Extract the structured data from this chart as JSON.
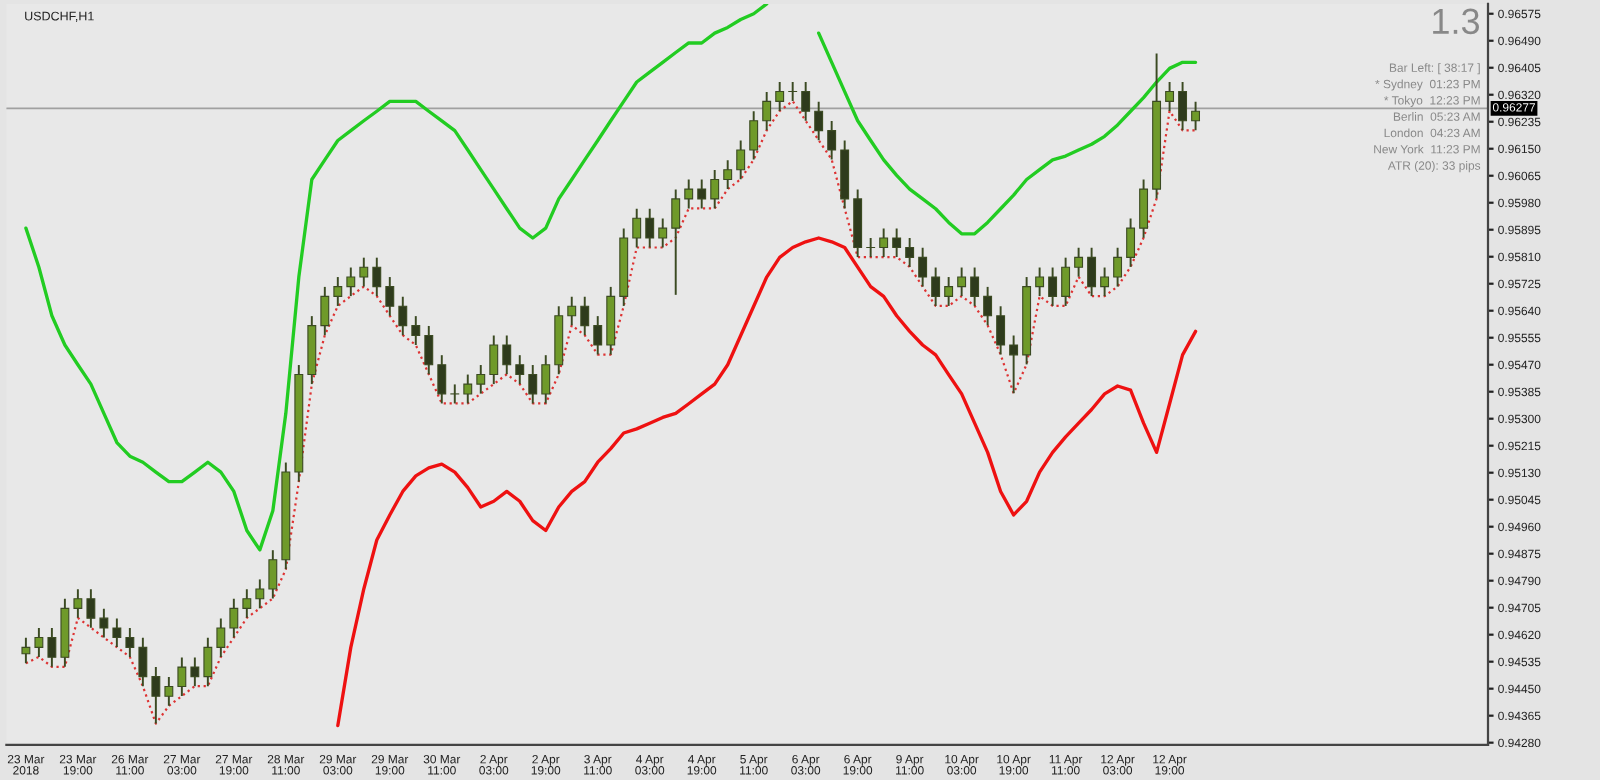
{
  "chart_data": {
    "type": "candlestick",
    "title": "USDCHF,H1",
    "categories": [
      "23 Mar 2018",
      null,
      null,
      null,
      "23 Mar 19:00",
      null,
      null,
      null,
      "26 Mar 11:00",
      null,
      null,
      null,
      "27 Mar 03:00",
      null,
      null,
      null,
      "27 Mar 19:00",
      null,
      null,
      null,
      "28 Mar 11:00",
      null,
      null,
      null,
      "29 Mar 03:00",
      null,
      null,
      null,
      "29 Mar 19:00",
      null,
      null,
      null,
      "30 Mar 11:00",
      null,
      null,
      null,
      "2 Apr 03:00",
      null,
      null,
      null,
      "2 Apr 19:00",
      null,
      null,
      null,
      "3 Apr 11:00",
      null,
      null,
      null,
      "4 Apr 03:00",
      null,
      null,
      null,
      "4 Apr 19:00",
      null,
      null,
      null,
      "5 Apr 11:00",
      null,
      null,
      null,
      "6 Apr 03:00",
      null,
      null,
      null,
      "6 Apr 19:00",
      null,
      null,
      null,
      "9 Apr 11:00",
      null,
      null,
      null,
      "10 Apr 03:00",
      null,
      null,
      null,
      "10 Apr 19:00",
      null,
      null,
      null,
      "11 Apr 11:00",
      null,
      null,
      null,
      "12 Apr 03:00",
      null,
      null,
      null,
      "12 Apr 19:00",
      null,
      null,
      null,
      null,
      null,
      null,
      null,
      null,
      null,
      null,
      null,
      null,
      null,
      null,
      null,
      null,
      null,
      null,
      null,
      null,
      null,
      null,
      null,
      null
    ],
    "ohlc": [
      [
        0.9456,
        0.9461,
        0.9453,
        0.9458
      ],
      [
        0.9458,
        0.94641,
        0.9455,
        0.94611
      ],
      [
        0.94611,
        0.94641,
        0.94519,
        0.94549
      ],
      [
        0.94549,
        0.94733,
        0.94519,
        0.94703
      ],
      [
        0.94703,
        0.94763,
        0.94673,
        0.94733
      ],
      [
        0.94733,
        0.94763,
        0.94642,
        0.94672
      ],
      [
        0.94672,
        0.94702,
        0.94611,
        0.94641
      ],
      [
        0.94641,
        0.94671,
        0.94581,
        0.94611
      ],
      [
        0.94611,
        0.94641,
        0.9455,
        0.9458
      ],
      [
        0.9458,
        0.9461,
        0.94458,
        0.94488
      ],
      [
        0.94488,
        0.94518,
        0.9434,
        0.94426
      ],
      [
        0.94426,
        0.94487,
        0.94396,
        0.94457
      ],
      [
        0.94457,
        0.94548,
        0.94427,
        0.94518
      ],
      [
        0.94518,
        0.94548,
        0.94458,
        0.94488
      ],
      [
        0.94488,
        0.9461,
        0.94458,
        0.9458
      ],
      [
        0.9458,
        0.94671,
        0.9455,
        0.94641
      ],
      [
        0.94641,
        0.94733,
        0.94611,
        0.94703
      ],
      [
        0.94703,
        0.94763,
        0.94673,
        0.94733
      ],
      [
        0.94733,
        0.94794,
        0.94703,
        0.94764
      ],
      [
        0.94764,
        0.94886,
        0.94734,
        0.94856
      ],
      [
        0.94856,
        0.95162,
        0.94826,
        0.95132
      ],
      [
        0.95132,
        0.95469,
        0.95102,
        0.95439
      ],
      [
        0.95439,
        0.95623,
        0.95409,
        0.95593
      ],
      [
        0.95593,
        0.95715,
        0.95563,
        0.95685
      ],
      [
        0.95685,
        0.95746,
        0.95655,
        0.95716
      ],
      [
        0.95716,
        0.95776,
        0.95686,
        0.95746
      ],
      [
        0.95746,
        0.95807,
        0.95716,
        0.95777
      ],
      [
        0.95777,
        0.95807,
        0.95686,
        0.95716
      ],
      [
        0.95716,
        0.95746,
        0.95624,
        0.95654
      ],
      [
        0.95654,
        0.95684,
        0.95563,
        0.95593
      ],
      [
        0.95593,
        0.95623,
        0.95532,
        0.95562
      ],
      [
        0.95562,
        0.95592,
        0.9544,
        0.9547
      ],
      [
        0.9547,
        0.955,
        0.95348,
        0.95378
      ],
      [
        0.95378,
        0.95408,
        0.95348,
        0.95378
      ],
      [
        0.95378,
        0.95439,
        0.95348,
        0.95409
      ],
      [
        0.95409,
        0.95469,
        0.95379,
        0.95439
      ],
      [
        0.95439,
        0.95562,
        0.95409,
        0.95532
      ],
      [
        0.95532,
        0.95562,
        0.9544,
        0.9547
      ],
      [
        0.9547,
        0.955,
        0.95409,
        0.95439
      ],
      [
        0.95439,
        0.95469,
        0.95348,
        0.95378
      ],
      [
        0.95378,
        0.955,
        0.95348,
        0.9547
      ],
      [
        0.9547,
        0.95654,
        0.9544,
        0.95624
      ],
      [
        0.95624,
        0.95684,
        0.95594,
        0.95654
      ],
      [
        0.95654,
        0.95684,
        0.95563,
        0.95593
      ],
      [
        0.95593,
        0.95623,
        0.95502,
        0.95532
      ],
      [
        0.95532,
        0.95715,
        0.95502,
        0.95685
      ],
      [
        0.95685,
        0.95899,
        0.95655,
        0.95869
      ],
      [
        0.95869,
        0.95961,
        0.95839,
        0.95931
      ],
      [
        0.95931,
        0.95961,
        0.95839,
        0.95869
      ],
      [
        0.95869,
        0.9593,
        0.95839,
        0.959
      ],
      [
        0.959,
        0.96022,
        0.9569,
        0.95992
      ],
      [
        0.95992,
        0.96053,
        0.95962,
        0.96023
      ],
      [
        0.96023,
        0.96053,
        0.95962,
        0.95992
      ],
      [
        0.95992,
        0.96083,
        0.95962,
        0.96053
      ],
      [
        0.96053,
        0.96114,
        0.96023,
        0.96084
      ],
      [
        0.96084,
        0.96176,
        0.96054,
        0.96146
      ],
      [
        0.96146,
        0.96268,
        0.96116,
        0.96238
      ],
      [
        0.96238,
        0.96329,
        0.96208,
        0.96299
      ],
      [
        0.96299,
        0.9636,
        0.96269,
        0.9633
      ],
      [
        0.9633,
        0.9636,
        0.963,
        0.9633
      ],
      [
        0.9633,
        0.9636,
        0.96238,
        0.96268
      ],
      [
        0.96268,
        0.96298,
        0.96177,
        0.96207
      ],
      [
        0.96207,
        0.96237,
        0.96116,
        0.96146
      ],
      [
        0.96146,
        0.96176,
        0.95962,
        0.95992
      ],
      [
        0.95992,
        0.96022,
        0.95809,
        0.95839
      ],
      [
        0.95839,
        0.95869,
        0.95809,
        0.95839
      ],
      [
        0.95839,
        0.95899,
        0.95809,
        0.95869
      ],
      [
        0.95869,
        0.95899,
        0.95809,
        0.95839
      ],
      [
        0.95839,
        0.95869,
        0.95778,
        0.95808
      ],
      [
        0.95808,
        0.95838,
        0.95716,
        0.95746
      ],
      [
        0.95746,
        0.95776,
        0.95655,
        0.95685
      ],
      [
        0.95685,
        0.95746,
        0.95655,
        0.95716
      ],
      [
        0.95716,
        0.95776,
        0.95686,
        0.95746
      ],
      [
        0.95746,
        0.95776,
        0.95655,
        0.95685
      ],
      [
        0.95685,
        0.95715,
        0.95594,
        0.95624
      ],
      [
        0.95624,
        0.95654,
        0.95502,
        0.95532
      ],
      [
        0.95532,
        0.95562,
        0.9538,
        0.95501
      ],
      [
        0.95501,
        0.95746,
        0.95471,
        0.95716
      ],
      [
        0.95716,
        0.95776,
        0.95686,
        0.95746
      ],
      [
        0.95746,
        0.95776,
        0.95655,
        0.95685
      ],
      [
        0.95685,
        0.95807,
        0.95655,
        0.95777
      ],
      [
        0.95777,
        0.95838,
        0.95747,
        0.95808
      ],
      [
        0.95808,
        0.95838,
        0.95686,
        0.95716
      ],
      [
        0.95716,
        0.95776,
        0.95686,
        0.95746
      ],
      [
        0.95746,
        0.95838,
        0.95716,
        0.95808
      ],
      [
        0.95808,
        0.9593,
        0.95778,
        0.959
      ],
      [
        0.959,
        0.96053,
        0.9587,
        0.96023
      ],
      [
        0.96023,
        0.9645,
        0.95993,
        0.96299
      ],
      [
        0.96299,
        0.9636,
        0.96269,
        0.9633
      ],
      [
        0.9633,
        0.9636,
        0.96208,
        0.96238
      ],
      [
        0.96238,
        0.96298,
        0.96208,
        0.96268
      ],
      null,
      null,
      null,
      null,
      null,
      null,
      null,
      null,
      null,
      null,
      null,
      null,
      null,
      null,
      null,
      null,
      null,
      null,
      null,
      null,
      null,
      null
    ],
    "series": [
      {
        "type": "line",
        "color": "#22cc22",
        "line_style": "solid",
        "values": [
          0.959,
          0.95777,
          0.95624,
          0.95532,
          0.9547,
          0.95409,
          0.95317,
          0.95225,
          0.95182,
          0.95163,
          0.95132,
          0.95102,
          0.95102,
          0.95132,
          0.95163,
          0.95132,
          0.95071,
          0.94948,
          0.94887,
          0.9501,
          0.95317,
          0.95746,
          0.96053,
          0.96115,
          0.96176,
          0.96207,
          0.96238,
          0.96268,
          0.96299,
          0.96299,
          0.96299,
          0.96268,
          0.96238,
          0.96207,
          0.96146,
          0.96084,
          0.96023,
          0.95961,
          0.959,
          0.95869,
          0.959,
          0.95992,
          0.96053,
          0.96115,
          0.96176,
          0.96238,
          0.96299,
          0.9636,
          0.96391,
          0.96422,
          0.96453,
          0.96483,
          0.96483,
          0.96514,
          0.96532,
          0.96557,
          0.96575,
          0.96606,
          null,
          null,
          null,
          0.96514,
          0.96422,
          0.9633,
          0.96238,
          0.96176,
          0.96115,
          0.96066,
          0.96023,
          0.95992,
          0.95961,
          0.95918,
          0.95882,
          0.95882,
          0.95918,
          0.95961,
          0.96004,
          0.96053,
          0.96084,
          0.96115,
          0.96127,
          0.96146,
          0.96164,
          0.96189,
          0.96225,
          0.96268,
          0.96311,
          0.9636,
          0.96403,
          0.96422,
          0.96422,
          null,
          null,
          null,
          null,
          null,
          null,
          null,
          null,
          null,
          null,
          null,
          null,
          null,
          null,
          null,
          null,
          null,
          null,
          null,
          null,
          null,
          null
        ]
      },
      {
        "type": "line",
        "color": "#ee1111",
        "line_style": "solid",
        "values": [
          null,
          null,
          null,
          null,
          null,
          null,
          null,
          null,
          null,
          null,
          null,
          null,
          null,
          null,
          null,
          null,
          null,
          null,
          null,
          null,
          null,
          null,
          null,
          null,
          0.94334,
          0.9458,
          0.94764,
          0.94918,
          0.94997,
          0.95071,
          0.9512,
          0.95145,
          0.95157,
          0.95132,
          0.95083,
          0.95022,
          0.9504,
          0.95071,
          0.9504,
          0.94979,
          0.94948,
          0.95022,
          0.95071,
          0.95102,
          0.95163,
          0.95206,
          0.95255,
          0.95268,
          0.95286,
          0.95304,
          0.95317,
          0.95347,
          0.95378,
          0.95409,
          0.9547,
          0.95562,
          0.95654,
          0.95746,
          0.95808,
          0.95839,
          0.95857,
          0.95869,
          0.95857,
          0.95839,
          0.95777,
          0.95716,
          0.95685,
          0.95624,
          0.95575,
          0.95532,
          0.95501,
          0.95439,
          0.95378,
          0.95286,
          0.95194,
          0.95071,
          0.94997,
          0.9504,
          0.95132,
          0.95194,
          0.95243,
          0.95286,
          0.95329,
          0.95378,
          0.95403,
          0.9539,
          0.95286,
          0.95194,
          0.95347,
          0.95501,
          0.95575,
          null,
          null,
          null,
          null,
          null,
          null,
          null,
          null,
          null,
          null,
          null,
          null,
          null,
          null,
          null,
          null,
          null,
          null,
          null,
          null,
          null,
          null
        ]
      },
      {
        "type": "line",
        "color": "#dd3333",
        "line_style": "dotted",
        "values": [
          0.9453,
          0.9455,
          0.94519,
          0.94519,
          0.94673,
          0.94642,
          0.94611,
          0.94581,
          0.9455,
          0.94458,
          0.9434,
          0.94396,
          0.94427,
          0.94458,
          0.94458,
          0.9455,
          0.94611,
          0.94673,
          0.94703,
          0.94734,
          0.94826,
          0.95102,
          0.95409,
          0.95563,
          0.95655,
          0.95686,
          0.95716,
          0.95686,
          0.95624,
          0.95563,
          0.95532,
          0.9544,
          0.95348,
          0.95348,
          0.95348,
          0.95379,
          0.95409,
          0.9544,
          0.95409,
          0.95348,
          0.95348,
          0.9544,
          0.95594,
          0.95563,
          0.95502,
          0.95502,
          0.95655,
          0.95839,
          0.95839,
          0.95839,
          0.9587,
          0.95962,
          0.95962,
          0.95962,
          0.96023,
          0.96054,
          0.96116,
          0.96208,
          0.96269,
          0.963,
          0.96238,
          0.96177,
          0.96116,
          0.95962,
          0.95809,
          0.95809,
          0.95809,
          0.95809,
          0.95778,
          0.95716,
          0.95655,
          0.95655,
          0.95686,
          0.95655,
          0.95594,
          0.95502,
          0.9538,
          0.95471,
          0.95686,
          0.95655,
          0.95655,
          0.95747,
          0.95686,
          0.95686,
          0.95716,
          0.95778,
          0.9587,
          0.95993,
          0.96269,
          0.96208,
          0.96208,
          null,
          null,
          null,
          null,
          null,
          null,
          null,
          null,
          null,
          null,
          null,
          null,
          null,
          null,
          null,
          null,
          null,
          null,
          null,
          null,
          null,
          null
        ]
      }
    ],
    "ylim": [
      0.94273,
      0.96606
    ],
    "yticks": [
      {
        "value": 0.9428,
        "label": "0.94280"
      },
      0.94365,
      {
        "value": 0.9445,
        "label": "0.94450"
      },
      0.94535,
      {
        "value": 0.9462,
        "label": "0.94620"
      },
      0.94705,
      {
        "value": 0.9479,
        "label": "0.94790"
      },
      0.94875,
      {
        "value": 0.9496,
        "label": "0.94960"
      },
      0.95045,
      {
        "value": 0.9513,
        "label": "0.95130"
      },
      0.95215,
      {
        "value": 0.953,
        "label": "0.95300"
      },
      0.95385,
      {
        "value": 0.9547,
        "label": "0.95470"
      },
      0.95555,
      {
        "value": 0.9564,
        "label": "0.95640"
      },
      0.95725,
      {
        "value": 0.9581,
        "label": "0.95810"
      },
      0.95895,
      {
        "value": 0.9598,
        "label": "0.95980"
      },
      0.96065,
      {
        "value": 0.9615,
        "label": "0.96150"
      },
      0.96235,
      {
        "value": 0.9632,
        "label": "0.96320"
      },
      0.96405,
      {
        "value": 0.9649,
        "label": "0.96490"
      },
      0.96575
    ],
    "ref_lines": [
      {
        "axis": "y",
        "value": 0.96277,
        "label": "0.96277",
        "color": "#a0a0a0",
        "line_style": "solid"
      }
    ],
    "annotations": [
      "1.3",
      "Bar Left: [ 38:17 ]",
      "* Sydney  01:23 PM",
      "* Tokyo  12:23 PM",
      "Berlin  05:23 AM",
      "London  04:23 AM",
      "New York  11:23 PM",
      "ATR (20): 33 pips"
    ],
    "grid": false,
    "legend": false
  }
}
